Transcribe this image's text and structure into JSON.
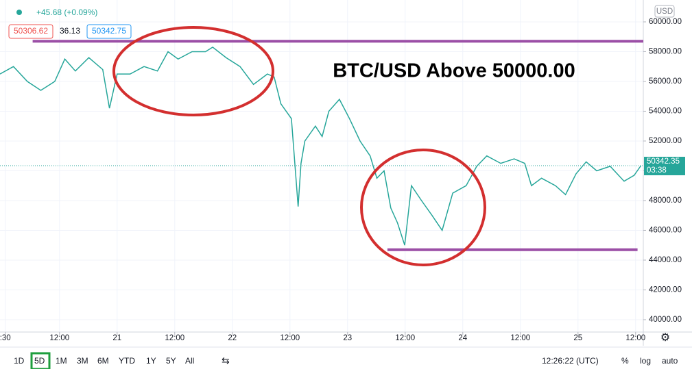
{
  "chart_data": {
    "type": "line",
    "title": "BTC/USD Above 50000.00",
    "change": "+45.68 (+0.09%)",
    "bid": "50306.62",
    "spread": "36.13",
    "ask": "50342.75",
    "currency": "USD",
    "last_price": "50342.35",
    "countdown": "03:38",
    "series": [
      {
        "color": "#26a69a",
        "x": [
          -24.4,
          -21.6,
          -18.7,
          -15.9,
          -13,
          -10.9,
          -8.7,
          -5.9,
          -3,
          -1.6,
          0,
          2.7,
          5.6,
          8.4,
          10.6,
          12.7,
          15.6,
          18.4,
          19.9,
          22.7,
          25.6,
          28.4,
          31.3,
          32.7,
          34.1,
          36.3,
          37.7,
          38.3,
          39.1,
          41.3,
          42.7,
          44.1,
          46.3,
          48.4,
          50.6,
          52.7,
          54.1,
          55.6,
          57,
          58.4,
          59.9,
          61.3,
          63.4,
          65.6,
          67.7,
          69.9,
          72.7,
          74.9,
          77,
          79.9,
          82.7,
          84.9,
          86.3,
          88.4,
          91.3,
          93.4,
          95.6,
          97.7,
          99.9,
          102.7,
          105.6,
          107.7,
          109.1
        ],
        "values": [
          56500,
          57000,
          56000,
          55400,
          56000,
          57500,
          56700,
          57600,
          56800,
          54200,
          56500,
          56500,
          57000,
          56700,
          58000,
          57500,
          58000,
          58000,
          58300,
          57600,
          57000,
          55800,
          56500,
          56300,
          54500,
          53500,
          47600,
          50500,
          52000,
          53000,
          52300,
          54000,
          54800,
          53500,
          52000,
          51000,
          49500,
          50000,
          47500,
          46500,
          45000,
          49000,
          48000,
          47000,
          46000,
          48500,
          49000,
          50300,
          51000,
          50500,
          50800,
          50500,
          49000,
          49500,
          49000,
          48400,
          49800,
          50600,
          50000,
          50300,
          49300,
          49700,
          50342.35
        ]
      }
    ],
    "levels": [
      {
        "value": 58700,
        "x": [
          -17.6,
          109.6
        ],
        "color": "#9b4fa6"
      },
      {
        "value": 44700,
        "x": [
          56.3,
          108.4
        ],
        "color": "#9b4fa6"
      }
    ],
    "xlim": [
      -24.4,
      109.6
    ],
    "xticks": [
      {
        "value": -23.3,
        "label": ":30"
      },
      {
        "value": -12,
        "label": "12:00"
      },
      {
        "value": 0,
        "label": "21"
      },
      {
        "value": 12,
        "label": "12:00"
      },
      {
        "value": 24,
        "label": "22"
      },
      {
        "value": 36,
        "label": "12:00"
      },
      {
        "value": 48,
        "label": "23"
      },
      {
        "value": 60,
        "label": "12:00"
      },
      {
        "value": 72,
        "label": "24"
      },
      {
        "value": 84,
        "label": "12:00"
      },
      {
        "value": 96,
        "label": "25"
      },
      {
        "value": 108,
        "label": "12:00"
      }
    ],
    "ylim": [
      39170,
      61470
    ],
    "yticks": [
      {
        "value": 40000,
        "label": "40000.00"
      },
      {
        "value": 42000,
        "label": "42000.00"
      },
      {
        "value": 44000,
        "label": "44000.00"
      },
      {
        "value": 46000,
        "label": "46000.00"
      },
      {
        "value": 48000,
        "label": "48000.00"
      },
      {
        "value": 50000,
        "label": "50000.00"
      },
      {
        "value": 52000,
        "label": "52000.00"
      },
      {
        "value": 54000,
        "label": "54000.00"
      },
      {
        "value": 56000,
        "label": "56000.00"
      },
      {
        "value": 58000,
        "label": "58000.00"
      },
      {
        "value": 60000,
        "label": "60000.00"
      }
    ],
    "grid": true,
    "toolbar": [
      "1D",
      "5D",
      "1M",
      "3M",
      "6M",
      "YTD",
      "1Y",
      "5Y",
      "All"
    ],
    "clock": "12:26:22 (UTC)",
    "options": [
      "%",
      "log",
      "auto"
    ]
  }
}
